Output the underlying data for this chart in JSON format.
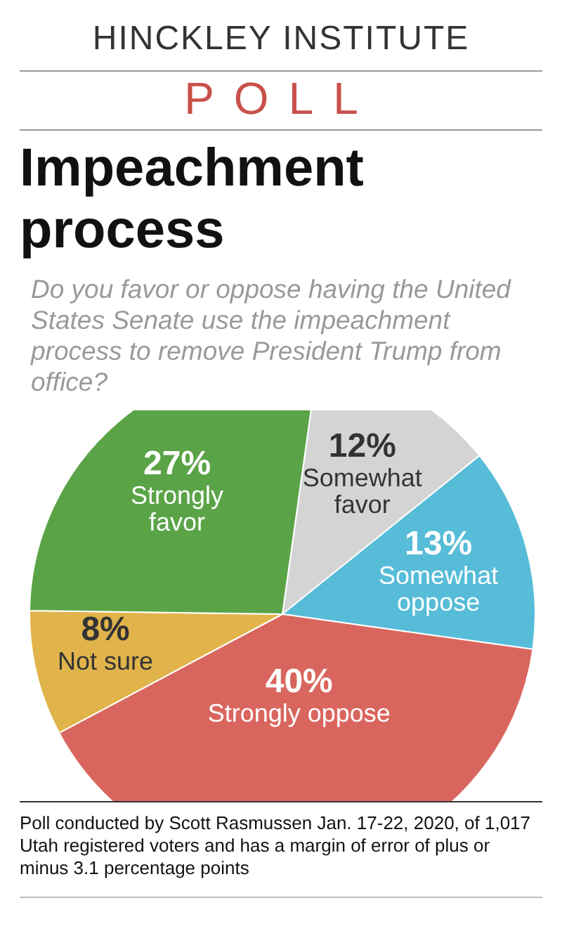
{
  "chart_data": {
    "type": "pie",
    "title": "Impeachment process",
    "subtitle": "Do you favor or oppose having the United States Senate use the impeachment process to remove President Trump from office?",
    "categories": [
      "Somewhat favor",
      "Somewhat oppose",
      "Strongly oppose",
      "Not sure",
      "Strongly favor"
    ],
    "values": [
      12,
      13,
      40,
      8,
      27
    ],
    "value_labels": [
      "12%",
      "13%",
      "40%",
      "8%",
      "27%"
    ],
    "colors": [
      "#d4d4d4",
      "#56bcd8",
      "#d9665e",
      "#e1b44b",
      "#5aa447"
    ],
    "annotations": [
      "HINCKLEY INSTITUTE",
      "POLL",
      "Poll conducted by Scott Rasmussen Jan. 17-22, 2020, of 1,017 Utah registered voters and has a margin of error of plus or minus 3.1 percentage points"
    ]
  }
}
